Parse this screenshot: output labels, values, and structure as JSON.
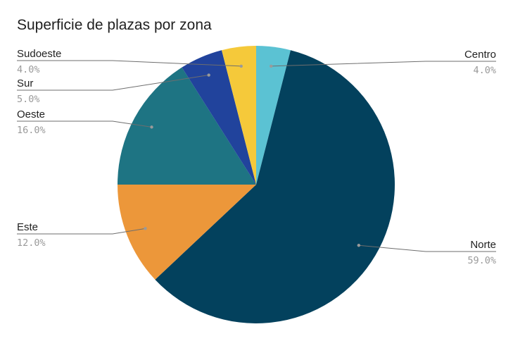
{
  "chart_data": {
    "type": "pie",
    "title": "Superficie de plazas por zona",
    "start_angle_deg": 0,
    "direction": "clockwise",
    "slices": [
      {
        "label": "Centro",
        "value": 4.0,
        "pct_label": "4.0%",
        "color": "#5bc2d3"
      },
      {
        "label": "Norte",
        "value": 59.0,
        "pct_label": "59.0%",
        "color": "#03415d"
      },
      {
        "label": "Este",
        "value": 12.0,
        "pct_label": "12.0%",
        "color": "#ec973a"
      },
      {
        "label": "Oeste",
        "value": 16.0,
        "pct_label": "16.0%",
        "color": "#1e7483"
      },
      {
        "label": "Sur",
        "value": 5.0,
        "pct_label": "5.0%",
        "color": "#21439c"
      },
      {
        "label": "Sudoeste",
        "value": 4.0,
        "pct_label": "4.0%",
        "color": "#f5c93a"
      }
    ],
    "legend": "none"
  }
}
